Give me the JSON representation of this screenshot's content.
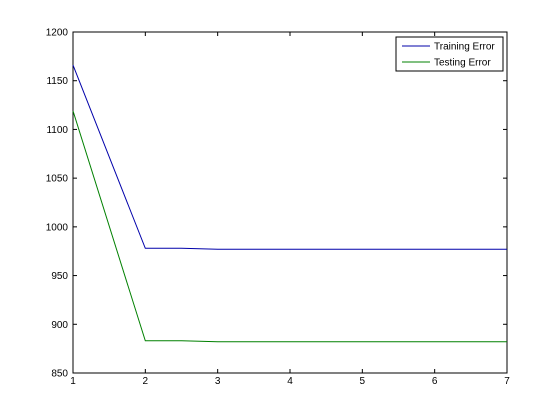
{
  "chart_data": {
    "type": "line",
    "x": [
      1,
      2,
      2.5,
      3,
      4,
      5,
      6,
      7
    ],
    "series": [
      {
        "name": "Training Error",
        "color": "#0000aa",
        "values": [
          1166,
          978,
          978,
          977,
          977,
          977,
          977,
          977
        ]
      },
      {
        "name": "Testing Error",
        "color": "#008000",
        "values": [
          1119,
          883,
          883,
          882,
          882,
          882,
          882,
          882
        ]
      }
    ],
    "xlim": [
      1,
      7
    ],
    "ylim": [
      850,
      1200
    ],
    "xticks": [
      "1",
      "2",
      "3",
      "4",
      "5",
      "6",
      "7"
    ],
    "yticks": [
      "850",
      "900",
      "950",
      "1000",
      "1050",
      "1100",
      "1150",
      "1200"
    ],
    "grid": false,
    "legend_position": "top-right"
  }
}
